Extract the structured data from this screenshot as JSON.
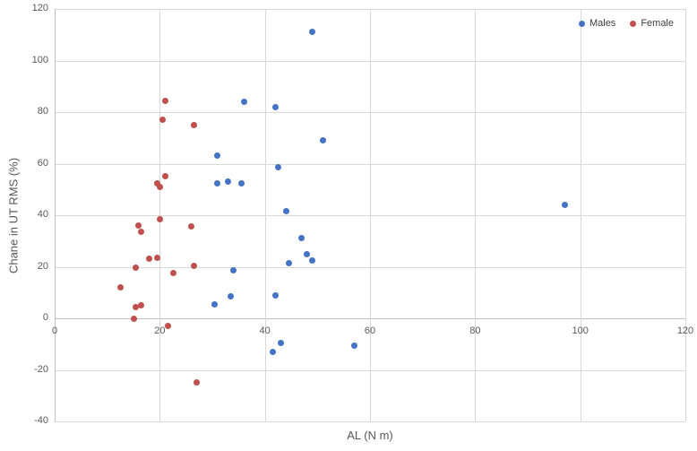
{
  "chart_data": {
    "type": "scatter",
    "title": "",
    "xlabel": "AL (N m)",
    "ylabel": "Chane in UT RMS (%)",
    "xlim": [
      0,
      120
    ],
    "ylim": [
      -40,
      120
    ],
    "xticks": [
      0,
      20,
      40,
      60,
      80,
      100,
      120
    ],
    "yticks": [
      -40,
      -20,
      0,
      20,
      40,
      60,
      80,
      100,
      120
    ],
    "grid": true,
    "legend_position": "top-right",
    "series": [
      {
        "name": "Males",
        "color": "#4472c4",
        "points": [
          [
            30.5,
            5.5
          ],
          [
            31,
            52.5
          ],
          [
            31,
            63
          ],
          [
            33,
            53
          ],
          [
            33.5,
            8.5
          ],
          [
            34,
            18.5
          ],
          [
            35.5,
            52.5
          ],
          [
            36,
            84
          ],
          [
            41.5,
            -13
          ],
          [
            42,
            9
          ],
          [
            42,
            82
          ],
          [
            42.5,
            58.5
          ],
          [
            43,
            -9.5
          ],
          [
            44,
            41.5
          ],
          [
            44.5,
            21.5
          ],
          [
            47,
            31
          ],
          [
            48,
            25
          ],
          [
            49,
            22.5
          ],
          [
            49,
            111
          ],
          [
            51,
            69
          ],
          [
            57,
            -10.5
          ],
          [
            97,
            44
          ]
        ]
      },
      {
        "name": "Female",
        "color": "#c0504d",
        "points": [
          [
            12.5,
            12
          ],
          [
            15,
            0
          ],
          [
            15.5,
            4.5
          ],
          [
            15.5,
            19.5
          ],
          [
            16,
            36
          ],
          [
            16.5,
            5
          ],
          [
            16.5,
            33.5
          ],
          [
            18,
            23
          ],
          [
            19.5,
            23.5
          ],
          [
            19.5,
            52.5
          ],
          [
            20,
            38.5
          ],
          [
            20,
            51
          ],
          [
            20.5,
            77
          ],
          [
            21,
            55
          ],
          [
            21,
            84.5
          ],
          [
            21.5,
            -3
          ],
          [
            22.5,
            17.5
          ],
          [
            26,
            35.5
          ],
          [
            26.5,
            20.5
          ],
          [
            26.5,
            75
          ],
          [
            27,
            -25
          ]
        ]
      }
    ]
  }
}
